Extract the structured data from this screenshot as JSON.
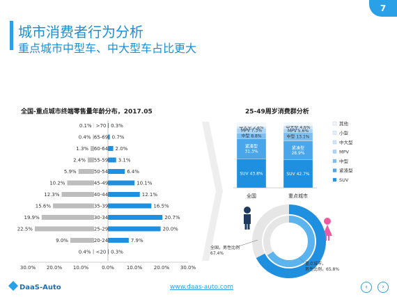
{
  "header": {
    "title": "城市消费者行为分析",
    "subtitle": "重点城市中型车、中大型车占比更大",
    "page_number": "7"
  },
  "footer": {
    "logo_text": "DaaS-Auto",
    "url": "www.daas-auto.com"
  },
  "colors": {
    "accent": "#2aa0e6",
    "gray": "#bdbdbd",
    "blue_series": "#1f8fe0"
  },
  "chart_data": [
    {
      "type": "bar",
      "orientation": "horizontal-butterfly",
      "title": "全国-重点城市终端零售量年龄分布，2017.05",
      "categories": [
        ">70",
        "65-69",
        "60-64",
        "55-59",
        "50-54",
        "45-49",
        "40-44",
        "35-39",
        "30-34",
        "25-29",
        "20-24",
        "<20"
      ],
      "series": [
        {
          "name": "全国",
          "values": [
            0.1,
            0.4,
            1.3,
            2.4,
            5.9,
            10.2,
            12.3,
            15.6,
            19.9,
            22.5,
            9.0,
            0.4
          ],
          "labels": [
            "0.1%",
            "0.4%",
            "1.3%",
            "2.4%",
            "5.9%",
            "10.2%",
            "12.3%",
            "15.6%",
            "19.9%",
            "22.5%",
            "9.0%",
            "0.4%"
          ]
        },
        {
          "name": "重点城市",
          "values": [
            0.3,
            0.7,
            2.0,
            3.1,
            6.4,
            10.1,
            12.1,
            16.5,
            20.7,
            20.0,
            7.9,
            0.3
          ],
          "labels": [
            "0.3%",
            "0.7%",
            "2.0%",
            "3.1%",
            "6.4%",
            "10.1%",
            "12.1%",
            "16.5%",
            "20.7%",
            "20.0%",
            "7.9%",
            "0.3%"
          ]
        }
      ],
      "xticks": [
        "30.0%",
        "20.0%",
        "10.0%",
        "0.0%",
        "10.0%",
        "20.0%",
        "30.0%"
      ],
      "xlim": [
        -30,
        30
      ],
      "legend": "bottom"
    },
    {
      "type": "bar",
      "orientation": "stacked-100",
      "title": "25-49周岁消费群分析",
      "categories": [
        "全国",
        "重点城市"
      ],
      "series": [
        {
          "name": "SUV",
          "values": [
            43.8,
            42.7
          ],
          "labels": [
            "SUV 43.8%",
            "SUV 42.7%"
          ]
        },
        {
          "name": "紧凑型",
          "values": [
            31.3,
            28.9
          ],
          "labels": [
            "紧凑型\n31.3%",
            "紧凑型\n28.9%"
          ]
        },
        {
          "name": "中型",
          "values": [
            8.8,
            13.1
          ],
          "labels": [
            "中型 8.8%",
            "中型 13.1%"
          ]
        },
        {
          "name": "MPV",
          "values": [
            7.3,
            5.6
          ],
          "labels": [
            "MPV 7.3%",
            "MPV 5.6%"
          ]
        },
        {
          "name": "中大型",
          "values": [
            2.8,
            4.6
          ],
          "labels": [
            "中大型 2.8%",
            "中大型 4.6%"
          ]
        },
        {
          "name": "小型",
          "values": [
            0,
            0
          ],
          "labels": [
            "",
            ""
          ]
        },
        {
          "name": "其他",
          "values": [
            6.0,
            5.1
          ],
          "labels": [
            "",
            ""
          ]
        }
      ],
      "legend_items": [
        "其他",
        "小型",
        "中大型",
        "MPV",
        "中型",
        "紧凑型",
        "SUV"
      ],
      "legend": "right"
    },
    {
      "type": "pie",
      "subtype": "double-donut",
      "rings": [
        {
          "name": "全国",
          "male_share": 67.4,
          "label": "全国，男性比例\n67.4%"
        },
        {
          "name": "重点城市",
          "male_share": 65.8,
          "label": "重点城市，\n男性比例，65.8%"
        }
      ]
    }
  ]
}
